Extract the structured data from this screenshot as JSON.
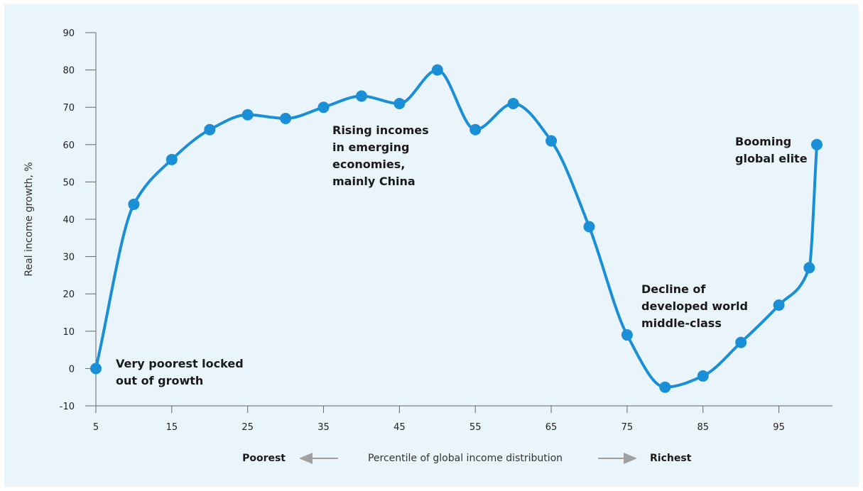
{
  "chart_data": {
    "type": "line",
    "ylabel": "Real income growth, %",
    "xlabel": "Percentile of global income distribution",
    "x_left_label": "Poorest",
    "x_right_label": "Richest",
    "xlim": [
      5,
      100
    ],
    "ylim": [
      -10,
      90
    ],
    "x_ticks": [
      5,
      15,
      25,
      35,
      45,
      55,
      65,
      75,
      85,
      95
    ],
    "y_ticks": [
      -10,
      0,
      10,
      20,
      30,
      40,
      50,
      60,
      70,
      80,
      90
    ],
    "line_color": "#1a8fd6",
    "background_color": "#eaf4fb",
    "grid": false,
    "series": [
      {
        "x": [
          5,
          10,
          15,
          20,
          25,
          30,
          35,
          40,
          45,
          50,
          55,
          60,
          65,
          70,
          75,
          80,
          85,
          90,
          95,
          99,
          100
        ],
        "values": [
          0,
          44,
          56,
          64,
          68,
          67,
          70,
          73,
          71,
          80,
          64,
          71,
          61,
          38,
          9,
          -5,
          -2,
          7,
          17,
          27,
          60
        ]
      }
    ],
    "annotations": [
      {
        "lines": [
          "Very poorest locked",
          "out of growth"
        ]
      },
      {
        "lines": [
          "Rising incomes",
          "in emerging",
          "economies,",
          "mainly China"
        ]
      },
      {
        "lines": [
          "Decline of",
          "developed world",
          "middle-class"
        ]
      },
      {
        "lines": [
          "Booming",
          "global elite"
        ]
      }
    ]
  }
}
